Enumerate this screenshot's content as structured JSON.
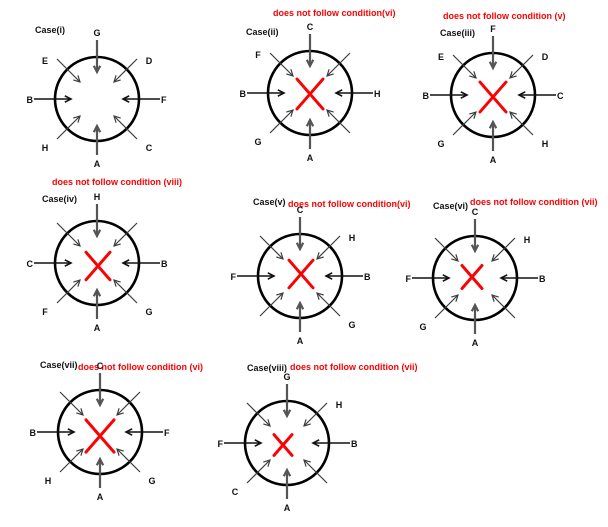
{
  "figure": {
    "description": "Eight circular arrangement cases with inward-pointing arrows labeled by letters; invalid cases are crossed out in red with a violated-condition note."
  },
  "palette": {
    "note_color": "#fb0202",
    "x_color": "#fb0202",
    "circle_color": "#000000",
    "letter_color": "#111111"
  },
  "cases": [
    {
      "name": "Case(i)",
      "condition_note": null,
      "note_position": null,
      "has_red_x": false,
      "arrows": {
        "top": "G",
        "ne": "D",
        "right": "F",
        "se": "C",
        "bottom": "A",
        "sw": "H",
        "left": "B",
        "nw": "E"
      }
    },
    {
      "name": "Case(ii)",
      "condition_note": "does not follow condition(vi)",
      "note_position": "above",
      "has_red_x": true,
      "arrows": {
        "top": "C",
        "ne": null,
        "right": "H",
        "se": null,
        "bottom": "A",
        "sw": "G",
        "left": "B",
        "nw": "F"
      }
    },
    {
      "name": "Case(iii)",
      "condition_note": "does not follow condition (v)",
      "note_position": "above",
      "has_red_x": true,
      "arrows": {
        "top": "F",
        "ne": "D",
        "right": "C",
        "se": "H",
        "bottom": "A",
        "sw": "G",
        "left": "B",
        "nw": "E"
      }
    },
    {
      "name": "Case(iv)",
      "condition_note": "does not follow condition (viii)",
      "note_position": "above",
      "has_red_x": true,
      "arrows": {
        "top": "H",
        "ne": null,
        "right": "B",
        "se": "G",
        "bottom": "A",
        "sw": "F",
        "left": "C",
        "nw": null
      }
    },
    {
      "name": "Case(v)",
      "condition_note": "does not follow condition(vi)",
      "note_position": "right",
      "has_red_x": true,
      "arrows": {
        "top": "C",
        "ne": "H",
        "right": "B",
        "se": "G",
        "bottom": "A",
        "sw": null,
        "left": "F",
        "nw": null
      }
    },
    {
      "name": "Case(vi)",
      "condition_note": "does not follow condition (vii)",
      "note_position": "right",
      "has_red_x": true,
      "arrows": {
        "top": "C",
        "ne": "H",
        "right": "B",
        "se": null,
        "bottom": "A",
        "sw": "G",
        "left": "F",
        "nw": null
      }
    },
    {
      "name": "Case(vii)",
      "condition_note": "does not follow condition (vi)",
      "note_position": "right",
      "has_red_x": true,
      "arrows": {
        "top": "C",
        "ne": null,
        "right": "F",
        "se": "G",
        "bottom": "A",
        "sw": "H",
        "left": "B",
        "nw": null
      }
    },
    {
      "name": "Case(viii)",
      "condition_note": "does not follow condition (vii)",
      "note_position": "right",
      "has_red_x": true,
      "arrows": {
        "top": "G",
        "ne": "H",
        "right": "B",
        "se": null,
        "bottom": "A",
        "sw": "C",
        "left": "F",
        "nw": null
      }
    }
  ]
}
